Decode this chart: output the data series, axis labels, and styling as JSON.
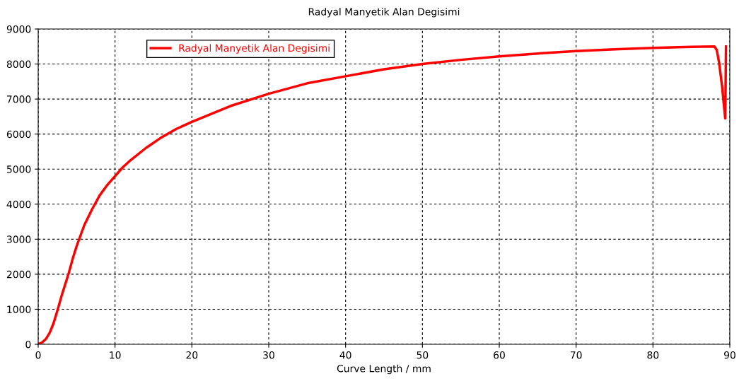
{
  "chart_data": {
    "type": "line",
    "title": "Radyal Manyetik Alan Degisimi",
    "xlabel": "Curve Length / mm",
    "x": [
      0,
      0.5,
      1,
      1.5,
      2,
      2.55,
      3,
      3.5,
      4,
      4.5,
      5,
      6,
      7,
      8,
      9,
      10,
      11,
      12,
      14,
      16,
      18,
      20,
      25,
      30,
      35,
      40,
      45,
      50,
      55,
      60,
      65,
      70,
      75,
      80,
      85,
      88,
      88.3,
      88.6,
      88.8,
      89,
      89.2,
      89.4,
      89.45,
      89.5
    ],
    "series": [
      {
        "name": "Radyal Manyetik Alan Degisimi",
        "color": "#ff0000",
        "values": [
          0,
          50,
          150,
          330,
          600,
          1000,
          1350,
          1700,
          2050,
          2450,
          2800,
          3400,
          3850,
          4250,
          4550,
          4800,
          5050,
          5250,
          5600,
          5900,
          6150,
          6350,
          6800,
          7150,
          7450,
          7650,
          7850,
          8000,
          8120,
          8220,
          8300,
          8370,
          8420,
          8460,
          8490,
          8500,
          8400,
          8050,
          7700,
          7350,
          6900,
          6450,
          7300,
          8500
        ]
      }
    ],
    "xlim": [
      0,
      90
    ],
    "ylim": [
      0,
      9000
    ],
    "xticks": [
      0,
      10,
      20,
      30,
      40,
      50,
      60,
      70,
      80,
      90
    ],
    "yticks": [
      0,
      1000,
      2000,
      3000,
      4000,
      5000,
      6000,
      7000,
      8000,
      9000
    ],
    "grid": true,
    "legend": "top left",
    "marker": "none",
    "line_style": "solid"
  }
}
